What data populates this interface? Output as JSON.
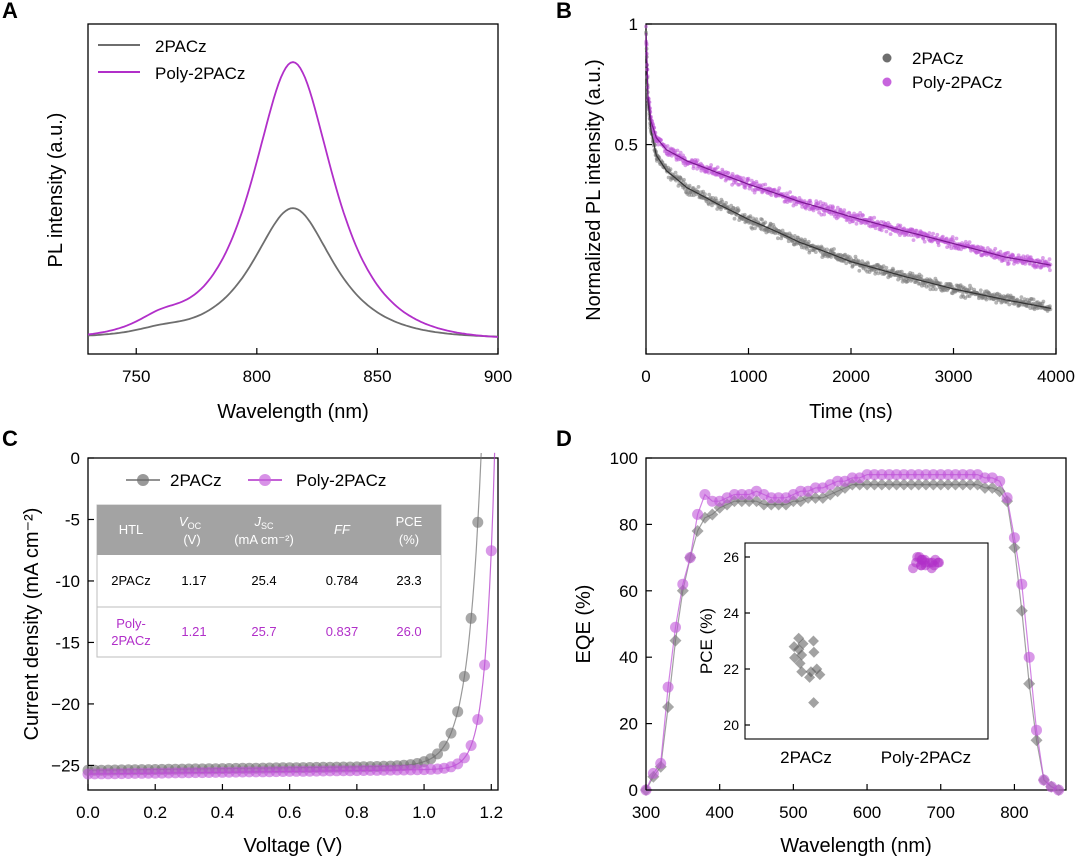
{
  "colors": {
    "gray": "#6e6e6e",
    "purple": "#b12fc9",
    "purple_light": "#c764dd",
    "header": "#a3a3a3"
  },
  "panels": {
    "a": "A",
    "b": "B",
    "c": "C",
    "d": "D"
  },
  "chart_data": [
    {
      "id": "A",
      "type": "line",
      "xlabel": "Wavelength (nm)",
      "ylabel": "PL intensity (a.u.)",
      "xlim": [
        730,
        900
      ],
      "ylim": [
        0,
        1.1
      ],
      "xticks": [
        750,
        800,
        850,
        900
      ],
      "series": [
        {
          "name": "2PACz",
          "color": "#6e6e6e",
          "peak": 815,
          "amp": 0.43,
          "width": 22,
          "base": 0.055
        },
        {
          "name": "Poly-2PACz",
          "color": "#b12fc9",
          "peak": 815,
          "amp": 0.92,
          "width": 22,
          "base": 0.05
        }
      ]
    },
    {
      "id": "B",
      "type": "scatter",
      "xlabel": "Time (ns)",
      "ylabel": "Normalized PL intensity (a.u.)",
      "xlim": [
        0,
        4000
      ],
      "ylim": [
        0.15,
        1
      ],
      "yscale": "log",
      "xticks": [
        0,
        1000,
        2000,
        3000,
        4000
      ],
      "yticks": [
        0.5,
        1
      ],
      "series": [
        {
          "name": "2PACz",
          "color": "#6e6e6e",
          "fit_t": [
            0,
            20,
            50,
            100,
            200,
            400,
            700,
            1000,
            1500,
            2000,
            2500,
            3000,
            3500,
            3950
          ],
          "fit_y": [
            0.95,
            0.64,
            0.54,
            0.47,
            0.43,
            0.39,
            0.355,
            0.325,
            0.285,
            0.255,
            0.235,
            0.218,
            0.205,
            0.195
          ]
        },
        {
          "name": "Poly-2PACz",
          "color": "#b12fc9",
          "fit_t": [
            0,
            20,
            50,
            100,
            200,
            400,
            700,
            1000,
            1500,
            2000,
            2500,
            3000,
            3500,
            3950
          ],
          "fit_y": [
            0.95,
            0.66,
            0.57,
            0.52,
            0.485,
            0.455,
            0.425,
            0.398,
            0.36,
            0.33,
            0.305,
            0.283,
            0.262,
            0.25
          ]
        }
      ]
    },
    {
      "id": "C",
      "type": "scatter",
      "xlabel": "Voltage (V)",
      "ylabel": "Current density (mA cm⁻²)",
      "xlim": [
        0,
        1.22
      ],
      "ylim": [
        -27,
        0
      ],
      "xticks": [
        0.0,
        0.2,
        0.4,
        0.6,
        0.8,
        1.0,
        1.2
      ],
      "xticklabels": [
        "0.0",
        "0.2",
        "0.4",
        "0.6",
        "0.8",
        "1.0",
        "1.2"
      ],
      "yticks": [
        0,
        -5,
        -10,
        -15,
        -20,
        -25
      ],
      "yticklabels": [
        "0",
        "-5",
        "-10",
        "-15",
        "−20",
        "−25"
      ],
      "series": [
        {
          "name": "2PACz",
          "color": "#6e6e6e",
          "jsc": 25.4,
          "voc": 1.17,
          "n": 1.55
        },
        {
          "name": "Poly-2PACz",
          "color": "#b12fc9",
          "jsc": 25.7,
          "voc": 1.21,
          "n": 1.05
        }
      ],
      "table": {
        "headers": [
          "HTL",
          "V",
          "OC",
          "(V)",
          "J",
          "SC",
          "(mA cm⁻²)",
          "FF",
          "PCE",
          "(%)"
        ],
        "row1": [
          "2PACz",
          "1.17",
          "25.4",
          "0.784",
          "23.3"
        ],
        "row2": [
          "Poly-",
          "2PACz",
          "1.21",
          "25.7",
          "0.837",
          "26.0"
        ]
      }
    },
    {
      "id": "D",
      "type": "scatter",
      "xlabel": "Wavelength (nm)",
      "ylabel": "EQE (%)",
      "xlim": [
        300,
        870
      ],
      "ylim": [
        0,
        100
      ],
      "xticks": [
        300,
        400,
        500,
        600,
        700,
        800
      ],
      "yticks": [
        0,
        20,
        40,
        60,
        80,
        100
      ],
      "wavelengths": [
        300,
        310,
        320,
        330,
        340,
        350,
        360,
        370,
        380,
        390,
        400,
        410,
        420,
        430,
        440,
        450,
        460,
        470,
        480,
        490,
        500,
        510,
        520,
        530,
        540,
        550,
        560,
        570,
        580,
        590,
        600,
        610,
        620,
        630,
        640,
        650,
        660,
        670,
        680,
        690,
        700,
        710,
        720,
        730,
        740,
        750,
        760,
        770,
        780,
        790,
        800,
        810,
        820,
        830,
        840,
        850,
        860
      ],
      "series": [
        {
          "name": "2PACz",
          "color": "#6e6e6e",
          "marker": "diamond",
          "values": [
            0,
            4,
            7,
            25,
            45,
            60,
            70,
            78,
            82,
            83,
            85,
            86,
            87,
            87,
            87,
            87,
            86,
            86,
            86,
            86,
            87,
            87,
            88,
            88,
            88,
            89,
            90,
            91,
            92,
            92,
            92,
            92,
            92,
            92,
            92,
            92,
            92,
            92,
            92,
            92,
            92,
            92,
            92,
            92,
            92,
            92,
            91,
            91,
            90,
            87,
            73,
            54,
            32,
            15,
            3,
            1,
            0
          ]
        },
        {
          "name": "Poly-2PACz",
          "color": "#b12fc9",
          "marker": "circle",
          "values": [
            0,
            5,
            8,
            31,
            49,
            62,
            70,
            83,
            89,
            87,
            87,
            88,
            89,
            89,
            89,
            90,
            89,
            88,
            88,
            88,
            89,
            90,
            90,
            91,
            91,
            92,
            93,
            93,
            94,
            94,
            95,
            95,
            95,
            95,
            95,
            95,
            95,
            95,
            95,
            95,
            95,
            95,
            95,
            95,
            95,
            95,
            94,
            94,
            93,
            88,
            76,
            62,
            40,
            18,
            3,
            1,
            0
          ]
        }
      ],
      "inset": {
        "ylabel": "PCE (%)",
        "ylim": [
          19.5,
          26.5
        ],
        "yticks": [
          20,
          22,
          24,
          26
        ],
        "categories": [
          "2PACz",
          "Poly-2PACz"
        ],
        "pce_2pacz": [
          22.0,
          23.1,
          21.9,
          22.8,
          22.5,
          23.0,
          21.8,
          22.2,
          22.6,
          20.8,
          21.9,
          22.9,
          22.4,
          21.7,
          22.7
        ],
        "pce_poly": [
          25.7,
          25.8,
          25.9,
          25.6,
          25.8,
          25.9,
          26.0,
          25.7,
          25.8,
          25.6,
          25.9,
          25.8,
          25.7,
          26.0,
          25.8,
          25.9,
          25.7,
          25.8
        ]
      }
    }
  ]
}
